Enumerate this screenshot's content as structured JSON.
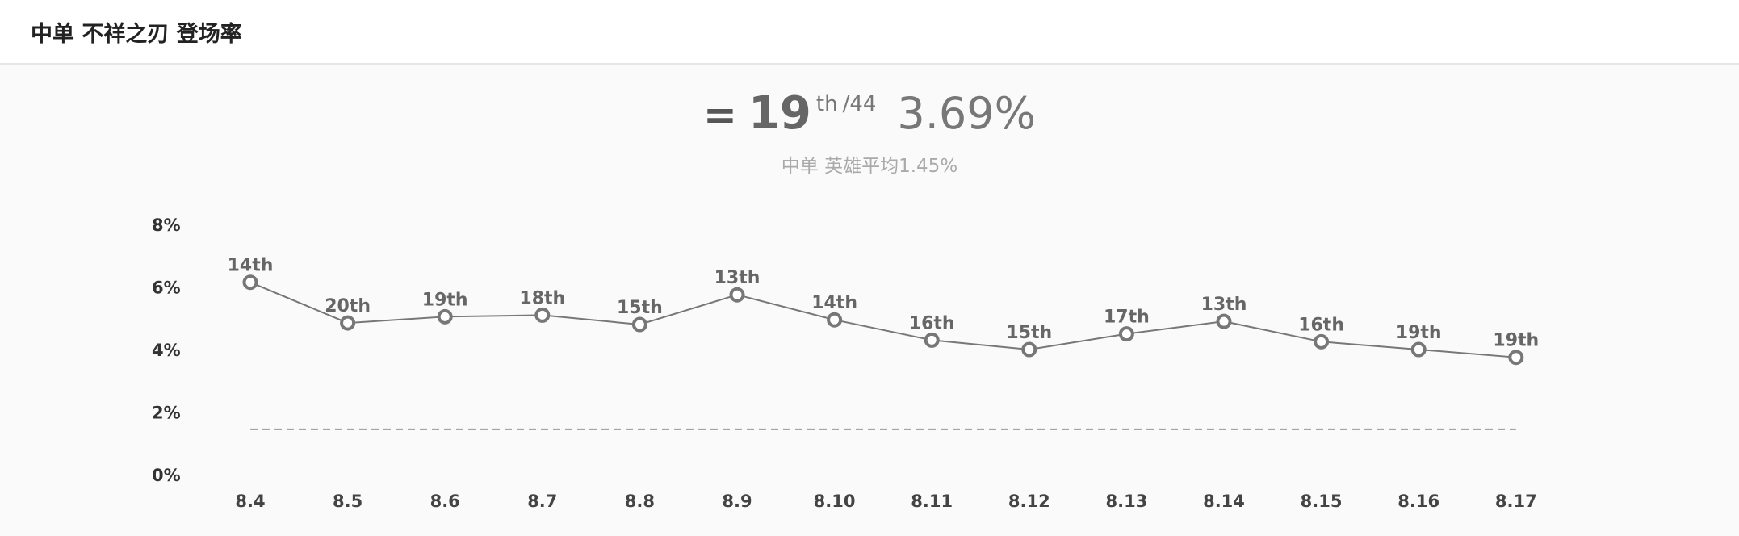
{
  "header": {
    "title": "中单 不祥之刃 登场率"
  },
  "summary": {
    "trend_symbol": "=",
    "rank": "19",
    "rank_suffix": "th",
    "rank_total": "/44",
    "rate": "3.69%",
    "average_text": "中单 英雄平均1.45%"
  },
  "colors": {
    "line": "#777777",
    "point_stroke": "#777777",
    "point_fill": "#ffffff",
    "average_line": "#999999",
    "background": "#fafafa"
  },
  "chart_data": {
    "type": "line",
    "categories": [
      "8.4",
      "8.5",
      "8.6",
      "8.7",
      "8.8",
      "8.9",
      "8.10",
      "8.11",
      "8.12",
      "8.13",
      "8.14",
      "8.15",
      "8.16",
      "8.17"
    ],
    "series": [
      {
        "values": [
          6.15,
          4.85,
          5.05,
          5.1,
          4.8,
          5.75,
          4.95,
          4.3,
          4.0,
          4.5,
          4.9,
          4.25,
          4.0,
          3.75
        ],
        "point_labels": [
          "14th",
          "20th",
          "19th",
          "18th",
          "15th",
          "13th",
          "14th",
          "16th",
          "15th",
          "17th",
          "13th",
          "16th",
          "19th",
          "19th"
        ]
      }
    ],
    "reference_line": {
      "value": 1.45,
      "style": "dashed"
    },
    "y_ticks": [
      "0%",
      "2%",
      "4%",
      "6%",
      "8%"
    ],
    "y_tick_values": [
      0,
      2,
      4,
      6,
      8
    ],
    "ylim": [
      0,
      8
    ],
    "grid": false,
    "legend": "none"
  }
}
